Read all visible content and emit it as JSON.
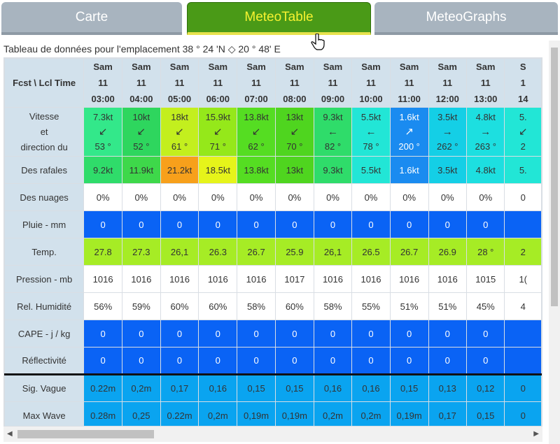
{
  "tabs": [
    {
      "label": "Carte"
    },
    {
      "label": "MeteoTable"
    },
    {
      "label": "MeteoGraphs"
    }
  ],
  "caption": "Tableau de données pour l'emplacement 38 ° 24 'N ◇ 20 ° 48' E",
  "header_label": "Fcst \\ Lcl Time",
  "columns": [
    {
      "day": "Sam",
      "date": "11",
      "time": "03:00"
    },
    {
      "day": "Sam",
      "date": "11",
      "time": "04:00"
    },
    {
      "day": "Sam",
      "date": "11",
      "time": "05:00"
    },
    {
      "day": "Sam",
      "date": "11",
      "time": "06:00"
    },
    {
      "day": "Sam",
      "date": "11",
      "time": "07:00"
    },
    {
      "day": "Sam",
      "date": "11",
      "time": "08:00"
    },
    {
      "day": "Sam",
      "date": "11",
      "time": "09:00"
    },
    {
      "day": "Sam",
      "date": "11",
      "time": "10:00"
    },
    {
      "day": "Sam",
      "date": "11",
      "time": "11:00"
    },
    {
      "day": "Sam",
      "date": "11",
      "time": "12:00"
    },
    {
      "day": "Sam",
      "date": "11",
      "time": "13:00"
    },
    {
      "day": "S",
      "date": "1",
      "time": "14"
    }
  ],
  "wind_label": [
    "Vitesse",
    "et",
    "direction du"
  ],
  "wind": [
    {
      "speed": "7.3kt",
      "dir": "53 °",
      "arrow": "↙",
      "bg": "#33e88a",
      "fg": "#333"
    },
    {
      "speed": "10kt",
      "dir": "52 °",
      "arrow": "↙",
      "bg": "#2ed65e",
      "fg": "#333"
    },
    {
      "speed": "18kt",
      "dir": "61 °",
      "arrow": "↙",
      "bg": "#c3ef1e",
      "fg": "#333"
    },
    {
      "speed": "15.9kt",
      "dir": "71 °",
      "arrow": "↙",
      "bg": "#95e81a",
      "fg": "#333"
    },
    {
      "speed": "13.8kt",
      "dir": "62 °",
      "arrow": "↙",
      "bg": "#55dd22",
      "fg": "#333"
    },
    {
      "speed": "13kt",
      "dir": "70 °",
      "arrow": "↙",
      "bg": "#4fd51f",
      "fg": "#333"
    },
    {
      "speed": "9.3kt",
      "dir": "82 °",
      "arrow": "←",
      "bg": "#2fdc6a",
      "fg": "#333"
    },
    {
      "speed": "5.5kt",
      "dir": "78 °",
      "arrow": "←",
      "bg": "#22e6d6",
      "fg": "#333"
    },
    {
      "speed": "1.6kt",
      "dir": "200 °",
      "arrow": "↗",
      "bg": "#1a8bf0",
      "fg": "#fff"
    },
    {
      "speed": "3.5kt",
      "dir": "262 °",
      "arrow": "→",
      "bg": "#14cfe6",
      "fg": "#333"
    },
    {
      "speed": "4.8kt",
      "dir": "263 °",
      "arrow": "→",
      "bg": "#1ddfe0",
      "fg": "#333"
    },
    {
      "speed": "5.",
      "dir": "2",
      "arrow": "↙",
      "bg": "#22e6d6",
      "fg": "#333"
    }
  ],
  "rows": [
    {
      "label": "Des rafales",
      "cells": [
        {
          "v": "9.2kt",
          "bg": "#2fdc6a"
        },
        {
          "v": "11.9kt",
          "bg": "#3ed84a"
        },
        {
          "v": "21.2kt",
          "bg": "#f7a01b"
        },
        {
          "v": "18.5kt",
          "bg": "#e6f41a"
        },
        {
          "v": "13.8kt",
          "bg": "#55dd22"
        },
        {
          "v": "13kt",
          "bg": "#4fd51f"
        },
        {
          "v": "9.3kt",
          "bg": "#2fdc6a"
        },
        {
          "v": "5.5kt",
          "bg": "#22e6d6"
        },
        {
          "v": "1.6kt",
          "bg": "#1a8bf0",
          "fg": "#fff"
        },
        {
          "v": "3.5kt",
          "bg": "#14cfe6"
        },
        {
          "v": "4.8kt",
          "bg": "#1ddfe0"
        },
        {
          "v": "5.",
          "bg": "#22e6d6"
        }
      ]
    },
    {
      "label": "Des nuages",
      "cells": [
        {
          "v": "0%"
        },
        {
          "v": "0%"
        },
        {
          "v": "0%"
        },
        {
          "v": "0%"
        },
        {
          "v": "0%"
        },
        {
          "v": "0%"
        },
        {
          "v": "0%"
        },
        {
          "v": "0%"
        },
        {
          "v": "0%"
        },
        {
          "v": "0%"
        },
        {
          "v": "0%"
        },
        {
          "v": "0"
        }
      ]
    },
    {
      "label": "Pluie - mm",
      "cells": [
        {
          "v": "0",
          "bg": "#0a63f5",
          "fg": "#fff"
        },
        {
          "v": "0",
          "bg": "#0a63f5",
          "fg": "#fff"
        },
        {
          "v": "0",
          "bg": "#0a63f5",
          "fg": "#fff"
        },
        {
          "v": "0",
          "bg": "#0a63f5",
          "fg": "#fff"
        },
        {
          "v": "0",
          "bg": "#0a63f5",
          "fg": "#fff"
        },
        {
          "v": "0",
          "bg": "#0a63f5",
          "fg": "#fff"
        },
        {
          "v": "0",
          "bg": "#0a63f5",
          "fg": "#fff"
        },
        {
          "v": "0",
          "bg": "#0a63f5",
          "fg": "#fff"
        },
        {
          "v": "0",
          "bg": "#0a63f5",
          "fg": "#fff"
        },
        {
          "v": "0",
          "bg": "#0a63f5",
          "fg": "#fff"
        },
        {
          "v": "0",
          "bg": "#0a63f5",
          "fg": "#fff"
        },
        {
          "v": "",
          "bg": "#0a63f5",
          "fg": "#fff"
        }
      ]
    },
    {
      "label": "Temp.",
      "cells": [
        {
          "v": "27.8",
          "bg": "#a6ec25"
        },
        {
          "v": "27.3",
          "bg": "#a6ec25"
        },
        {
          "v": "26,1",
          "bg": "#a6ec25"
        },
        {
          "v": "26.3",
          "bg": "#a6ec25"
        },
        {
          "v": "26.7",
          "bg": "#a6ec25"
        },
        {
          "v": "25.9",
          "bg": "#a6ec25"
        },
        {
          "v": "26,1",
          "bg": "#a6ec25"
        },
        {
          "v": "26.5",
          "bg": "#a6ec25"
        },
        {
          "v": "26.7",
          "bg": "#a6ec25"
        },
        {
          "v": "26.9",
          "bg": "#a6ec25"
        },
        {
          "v": "28 °",
          "bg": "#a6ec25"
        },
        {
          "v": "2",
          "bg": "#a6ec25"
        }
      ]
    },
    {
      "label": "Pression - mb",
      "cells": [
        {
          "v": "1016"
        },
        {
          "v": "1016"
        },
        {
          "v": "1016"
        },
        {
          "v": "1016"
        },
        {
          "v": "1016"
        },
        {
          "v": "1017"
        },
        {
          "v": "1016"
        },
        {
          "v": "1016"
        },
        {
          "v": "1016"
        },
        {
          "v": "1016"
        },
        {
          "v": "1015"
        },
        {
          "v": "1("
        }
      ]
    },
    {
      "label": "Rel. Humidité",
      "cells": [
        {
          "v": "56%"
        },
        {
          "v": "59%"
        },
        {
          "v": "60%"
        },
        {
          "v": "60%"
        },
        {
          "v": "58%"
        },
        {
          "v": "60%"
        },
        {
          "v": "58%"
        },
        {
          "v": "55%"
        },
        {
          "v": "51%"
        },
        {
          "v": "51%"
        },
        {
          "v": "45%"
        },
        {
          "v": "4"
        }
      ]
    },
    {
      "label": "CAPE - j / kg",
      "cells": [
        {
          "v": "0",
          "bg": "#0a63f5",
          "fg": "#fff"
        },
        {
          "v": "0",
          "bg": "#0a63f5",
          "fg": "#fff"
        },
        {
          "v": "0",
          "bg": "#0a63f5",
          "fg": "#fff"
        },
        {
          "v": "0",
          "bg": "#0a63f5",
          "fg": "#fff"
        },
        {
          "v": "0",
          "bg": "#0a63f5",
          "fg": "#fff"
        },
        {
          "v": "0",
          "bg": "#0a63f5",
          "fg": "#fff"
        },
        {
          "v": "0",
          "bg": "#0a63f5",
          "fg": "#fff"
        },
        {
          "v": "0",
          "bg": "#0a63f5",
          "fg": "#fff"
        },
        {
          "v": "0",
          "bg": "#0a63f5",
          "fg": "#fff"
        },
        {
          "v": "0",
          "bg": "#0a63f5",
          "fg": "#fff"
        },
        {
          "v": "0",
          "bg": "#0a63f5",
          "fg": "#fff"
        },
        {
          "v": "",
          "bg": "#0a63f5",
          "fg": "#fff"
        }
      ]
    },
    {
      "label": "Réflectivité",
      "cells": [
        {
          "v": "0",
          "bg": "#0a63f5",
          "fg": "#fff"
        },
        {
          "v": "0",
          "bg": "#0a63f5",
          "fg": "#fff"
        },
        {
          "v": "0",
          "bg": "#0a63f5",
          "fg": "#fff"
        },
        {
          "v": "0",
          "bg": "#0a63f5",
          "fg": "#fff"
        },
        {
          "v": "0",
          "bg": "#0a63f5",
          "fg": "#fff"
        },
        {
          "v": "0",
          "bg": "#0a63f5",
          "fg": "#fff"
        },
        {
          "v": "0",
          "bg": "#0a63f5",
          "fg": "#fff"
        },
        {
          "v": "0",
          "bg": "#0a63f5",
          "fg": "#fff"
        },
        {
          "v": "0",
          "bg": "#0a63f5",
          "fg": "#fff"
        },
        {
          "v": "0",
          "bg": "#0a63f5",
          "fg": "#fff"
        },
        {
          "v": "0",
          "bg": "#0a63f5",
          "fg": "#fff"
        },
        {
          "v": "",
          "bg": "#0a63f5",
          "fg": "#fff"
        }
      ]
    },
    {
      "label": "Sig. Vague",
      "sep": true,
      "cells": [
        {
          "v": "0.22m",
          "bg": "#0aa4f0"
        },
        {
          "v": "0,2m",
          "bg": "#0aa4f0"
        },
        {
          "v": "0,17",
          "bg": "#0aa4f0"
        },
        {
          "v": "0,16",
          "bg": "#0aa4f0"
        },
        {
          "v": "0,15",
          "bg": "#0aa4f0"
        },
        {
          "v": "0,15",
          "bg": "#0aa4f0"
        },
        {
          "v": "0,16",
          "bg": "#0aa4f0"
        },
        {
          "v": "0,16",
          "bg": "#0aa4f0"
        },
        {
          "v": "0,15",
          "bg": "#0aa4f0"
        },
        {
          "v": "0,13",
          "bg": "#0aa4f0"
        },
        {
          "v": "0,12",
          "bg": "#0aa4f0"
        },
        {
          "v": "0",
          "bg": "#0aa4f0"
        }
      ]
    },
    {
      "label": "Max Wave",
      "cells": [
        {
          "v": "0.28m",
          "bg": "#0aa4f0"
        },
        {
          "v": "0,25",
          "bg": "#0aa4f0"
        },
        {
          "v": "0.22m",
          "bg": "#0aa4f0"
        },
        {
          "v": "0,2m",
          "bg": "#0aa4f0"
        },
        {
          "v": "0,19m",
          "bg": "#0aa4f0"
        },
        {
          "v": "0,19m",
          "bg": "#0aa4f0"
        },
        {
          "v": "0,2m",
          "bg": "#0aa4f0"
        },
        {
          "v": "0,2m",
          "bg": "#0aa4f0"
        },
        {
          "v": "0,19m",
          "bg": "#0aa4f0"
        },
        {
          "v": "0,17",
          "bg": "#0aa4f0"
        },
        {
          "v": "0,15",
          "bg": "#0aa4f0"
        },
        {
          "v": "0",
          "bg": "#0aa4f0"
        }
      ]
    }
  ]
}
